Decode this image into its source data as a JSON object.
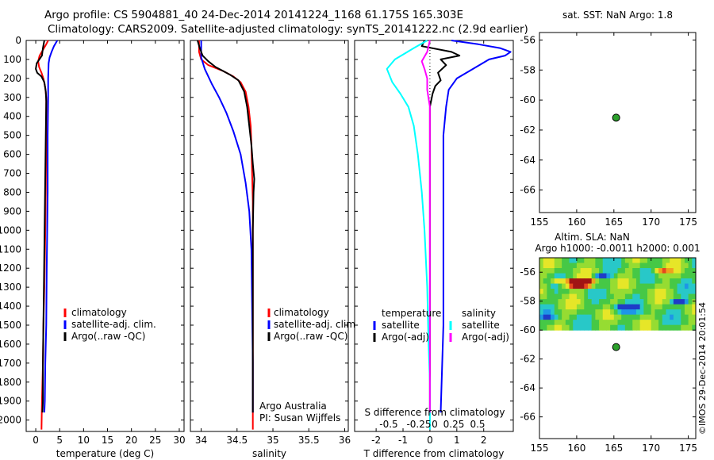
{
  "figure": {
    "title_line1": "Argo profile: CS 5904881_40 24-Dec-2014 20141224_1168 61.175S 165.303E",
    "title_line2": "Climatology: CARS2009. Satellite-adjusted climatology: synTS_20141222.nc (2.9d earlier)",
    "imos_stamp": "©IMOS 29-Dec-2014 20:01:54",
    "colors": {
      "red": "#ff0000",
      "blue": "#0000ff",
      "black": "#000000",
      "cyan": "#00ffff",
      "magenta": "#ff00ff",
      "marker_green": "#2ca02c"
    }
  },
  "chart_data": [
    {
      "id": "temperature_panel",
      "type": "line",
      "xlabel": "temperature (deg C)",
      "xlim": [
        -2,
        31
      ],
      "xticks": [
        0,
        5,
        10,
        15,
        20,
        25,
        30
      ],
      "ylim": [
        2060,
        0
      ],
      "yticks": [
        0,
        100,
        200,
        300,
        400,
        500,
        600,
        700,
        800,
        900,
        1000,
        1100,
        1200,
        1300,
        1400,
        1500,
        1600,
        1700,
        1800,
        1900,
        2000
      ],
      "legend": [
        "climatology",
        "satellite-adj. clim.",
        "Argo(..raw -QC)"
      ],
      "series": [
        {
          "name": "climatology",
          "color": "red",
          "points": [
            [
              2.6,
              0
            ],
            [
              2.2,
              20
            ],
            [
              1.5,
              50
            ],
            [
              0.8,
              80
            ],
            [
              0.5,
              110
            ],
            [
              0.7,
              140
            ],
            [
              1.2,
              170
            ],
            [
              1.6,
              200
            ],
            [
              2.0,
              250
            ],
            [
              2.2,
              300
            ],
            [
              2.2,
              500
            ],
            [
              2.1,
              800
            ],
            [
              2.0,
              1000
            ],
            [
              1.8,
              1300
            ],
            [
              1.6,
              1500
            ],
            [
              1.5,
              1700
            ],
            [
              1.3,
              1900
            ],
            [
              1.2,
              2050
            ]
          ]
        },
        {
          "name": "satellite-adj. clim.",
          "color": "blue",
          "points": [
            [
              4.5,
              0
            ],
            [
              3.8,
              30
            ],
            [
              3.3,
              60
            ],
            [
              2.9,
              90
            ],
            [
              2.7,
              120
            ],
            [
              2.6,
              200
            ],
            [
              2.6,
              300
            ],
            [
              2.5,
              500
            ],
            [
              2.5,
              800
            ],
            [
              2.4,
              1000
            ],
            [
              2.3,
              1200
            ],
            [
              2.2,
              1500
            ],
            [
              2.0,
              1700
            ],
            [
              1.9,
              1900
            ],
            [
              1.8,
              1960
            ]
          ]
        },
        {
          "name": "Argo(..raw -QC)",
          "color": "black",
          "points": [
            [
              1.8,
              0
            ],
            [
              1.5,
              40
            ],
            [
              1.3,
              80
            ],
            [
              0.2,
              120
            ],
            [
              0.0,
              150
            ],
            [
              0.3,
              170
            ],
            [
              1.2,
              190
            ],
            [
              1.8,
              220
            ],
            [
              2.1,
              270
            ],
            [
              2.2,
              320
            ],
            [
              2.1,
              500
            ],
            [
              2.0,
              700
            ],
            [
              1.9,
              900
            ],
            [
              1.8,
              1100
            ],
            [
              1.7,
              1300
            ],
            [
              1.6,
              1500
            ],
            [
              1.5,
              1700
            ],
            [
              1.5,
              1900
            ],
            [
              1.4,
              1960
            ]
          ]
        }
      ]
    },
    {
      "id": "salinity_panel",
      "type": "line",
      "xlabel": "salinity",
      "xlim": [
        33.85,
        36.05
      ],
      "xticks": [
        34,
        34.5,
        35,
        35.5,
        36
      ],
      "xtick_labels": [
        "34",
        "34.5",
        "35",
        "35.5",
        "36"
      ],
      "ylim": [
        2060,
        0
      ],
      "legend": [
        "climatology",
        "satellite-adj. clim.",
        "Argo(..raw -QC)"
      ],
      "annotation": [
        "Argo Australia",
        "PI: Susan Wijffels"
      ],
      "series": [
        {
          "name": "climatology",
          "color": "red",
          "points": [
            [
              33.97,
              0
            ],
            [
              33.97,
              60
            ],
            [
              34.0,
              100
            ],
            [
              34.1,
              130
            ],
            [
              34.3,
              160
            ],
            [
              34.45,
              190
            ],
            [
              34.55,
              220
            ],
            [
              34.62,
              270
            ],
            [
              34.66,
              350
            ],
            [
              34.69,
              450
            ],
            [
              34.7,
              550
            ],
            [
              34.71,
              700
            ],
            [
              34.72,
              850
            ],
            [
              34.72,
              1000
            ],
            [
              34.72,
              1200
            ],
            [
              34.72,
              1500
            ],
            [
              34.72,
              1800
            ],
            [
              34.72,
              2050
            ]
          ]
        },
        {
          "name": "satellite-adj. clim.",
          "color": "blue",
          "points": [
            [
              34.0,
              0
            ],
            [
              34.0,
              90
            ],
            [
              34.05,
              150
            ],
            [
              34.15,
              230
            ],
            [
              34.25,
              300
            ],
            [
              34.35,
              380
            ],
            [
              34.45,
              480
            ],
            [
              34.55,
              600
            ],
            [
              34.62,
              750
            ],
            [
              34.67,
              900
            ],
            [
              34.7,
              1100
            ],
            [
              34.71,
              1400
            ],
            [
              34.72,
              1700
            ],
            [
              34.72,
              1960
            ]
          ]
        },
        {
          "name": "Argo(..raw -QC)",
          "color": "black",
          "points": [
            [
              33.95,
              0
            ],
            [
              33.98,
              40
            ],
            [
              34.02,
              80
            ],
            [
              34.1,
              110
            ],
            [
              34.2,
              140
            ],
            [
              34.3,
              160
            ],
            [
              34.4,
              180
            ],
            [
              34.52,
              210
            ],
            [
              34.6,
              270
            ],
            [
              34.64,
              350
            ],
            [
              34.67,
              450
            ],
            [
              34.7,
              550
            ],
            [
              34.72,
              650
            ],
            [
              34.74,
              730
            ],
            [
              34.73,
              800
            ],
            [
              34.72,
              1000
            ],
            [
              34.72,
              1300
            ],
            [
              34.72,
              1600
            ],
            [
              34.72,
              1960
            ]
          ]
        }
      ]
    },
    {
      "id": "difference_panel",
      "type": "line",
      "xlabel": "T difference from climatology",
      "xlabel_top": "S difference from climatology",
      "xlim": [
        -2.8,
        3.1
      ],
      "xticks": [
        -2,
        -1,
        0,
        1,
        2
      ],
      "s_tick_labels": [
        "-0.5",
        "-0.25",
        "0",
        "0.25",
        "0.5"
      ],
      "ylim": [
        2060,
        0
      ],
      "legend_groups": [
        {
          "heading": "temperature",
          "items": [
            {
              "label": "satellite",
              "color": "blue"
            },
            {
              "label": "Argo(-adj)",
              "color": "black"
            }
          ]
        },
        {
          "heading": "salinity",
          "items": [
            {
              "label": "satellite",
              "color": "cyan"
            },
            {
              "label": "Argo(-adj)",
              "color": "magenta"
            }
          ]
        }
      ],
      "series": [
        {
          "name": "T satellite",
          "color": "blue",
          "points": [
            [
              0.8,
              0
            ],
            [
              1.8,
              20
            ],
            [
              2.6,
              40
            ],
            [
              3.0,
              60
            ],
            [
              2.8,
              80
            ],
            [
              2.2,
              100
            ],
            [
              1.6,
              150
            ],
            [
              1.0,
              200
            ],
            [
              0.7,
              260
            ],
            [
              0.6,
              350
            ],
            [
              0.5,
              500
            ],
            [
              0.5,
              800
            ],
            [
              0.5,
              1200
            ],
            [
              0.5,
              1500
            ],
            [
              0.4,
              1960
            ]
          ]
        },
        {
          "name": "T Argo(-adj)",
          "color": "black",
          "points": [
            [
              -0.2,
              0
            ],
            [
              -0.3,
              30
            ],
            [
              0.8,
              60
            ],
            [
              1.1,
              80
            ],
            [
              0.4,
              100
            ],
            [
              0.6,
              130
            ],
            [
              0.3,
              170
            ],
            [
              0.4,
              210
            ],
            [
              0.2,
              240
            ],
            [
              0.1,
              280
            ],
            [
              0.0,
              350
            ],
            [
              0.0,
              500
            ],
            [
              0.0,
              1000
            ],
            [
              0.0,
              1500
            ],
            [
              0.0,
              1960
            ]
          ]
        },
        {
          "name": "S satellite",
          "color": "cyan",
          "points": [
            [
              -0.1,
              0
            ],
            [
              -0.6,
              40
            ],
            [
              -1.3,
              100
            ],
            [
              -1.6,
              150
            ],
            [
              -1.4,
              220
            ],
            [
              -1.1,
              280
            ],
            [
              -0.8,
              350
            ],
            [
              -0.6,
              450
            ],
            [
              -0.45,
              600
            ],
            [
              -0.3,
              800
            ],
            [
              -0.2,
              1000
            ],
            [
              -0.1,
              1300
            ],
            [
              -0.05,
              1600
            ],
            [
              0.0,
              1800
            ],
            [
              0.0,
              2050
            ]
          ]
        },
        {
          "name": "S Argo(-adj)",
          "color": "magenta",
          "points": [
            [
              0.0,
              0
            ],
            [
              -0.1,
              60
            ],
            [
              -0.3,
              110
            ],
            [
              -0.2,
              150
            ],
            [
              -0.1,
              200
            ],
            [
              -0.1,
              260
            ],
            [
              0.0,
              350
            ],
            [
              0.0,
              500
            ],
            [
              0.0,
              800
            ],
            [
              0.0,
              1200
            ],
            [
              0.0,
              1600
            ],
            [
              0.0,
              1960
            ]
          ]
        }
      ]
    },
    {
      "id": "sst_map",
      "type": "scatter",
      "title": "sat. SST: NaN Argo: 1.8",
      "xlim": [
        155,
        176
      ],
      "xticks": [
        155,
        160,
        165,
        170,
        175
      ],
      "ylim": [
        -67.5,
        -55.5
      ],
      "yticks": [
        -56,
        -58,
        -60,
        -62,
        -64,
        -66
      ],
      "points": [
        [
          165.303,
          -61.175
        ]
      ]
    },
    {
      "id": "sla_map",
      "type": "heatmap",
      "title_line1": "Altim. SLA: NaN",
      "title_line2": "Argo h1000: -0.0011 h2000: 0.001",
      "xlim": [
        155,
        176
      ],
      "xticks": [
        155,
        160,
        165,
        170,
        175
      ],
      "ylim": [
        -67.5,
        -55
      ],
      "yticks": [
        -56,
        -58,
        -60,
        -62,
        -64,
        -66
      ],
      "heatmap_lat_range": [
        -60,
        -55
      ],
      "points": [
        [
          165.303,
          -61.175
        ]
      ]
    }
  ]
}
